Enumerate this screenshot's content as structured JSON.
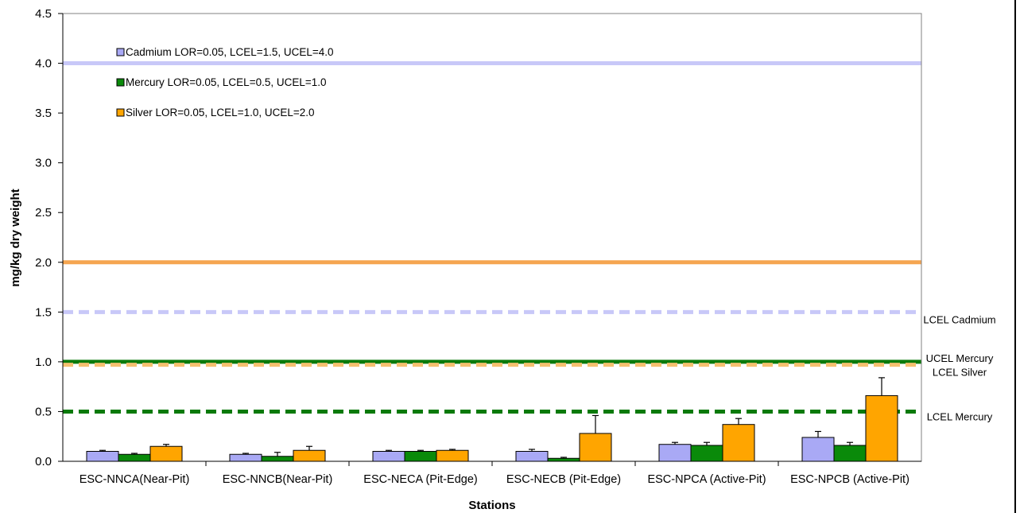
{
  "chart_data": {
    "type": "bar",
    "title": "",
    "xlabel": "Stations",
    "ylabel": "mg/kg dry weight",
    "ylim": [
      0,
      4.5
    ],
    "yticks": [
      "0.0",
      "0.5",
      "1.0",
      "1.5",
      "2.0",
      "2.5",
      "3.0",
      "3.5",
      "4.0",
      "4.5"
    ],
    "categories": [
      "ESC-NNCA(Near-Pit)",
      "ESC-NNCB(Near-Pit)",
      "ESC-NECA (Pit-Edge)",
      "ESC-NECB (Pit-Edge)",
      "ESC-NPCA (Active-Pit)",
      "ESC-NPCB (Active-Pit)"
    ],
    "series": [
      {
        "name": "Cadmium LOR=0.05, LCEL=1.5, UCEL=4.0",
        "color": "#a9a9f5",
        "values": [
          0.1,
          0.07,
          0.1,
          0.1,
          0.17,
          0.24
        ],
        "errors": [
          0.01,
          0.01,
          0.01,
          0.02,
          0.02,
          0.06
        ]
      },
      {
        "name": "Mercury LOR=0.05, LCEL=0.5, UCEL=1.0",
        "color": "#0a8a0a",
        "values": [
          0.07,
          0.05,
          0.1,
          0.03,
          0.16,
          0.16
        ],
        "errors": [
          0.01,
          0.04,
          0.01,
          0.01,
          0.03,
          0.03
        ]
      },
      {
        "name": "Silver LOR=0.05, LCEL=1.0, UCEL=2.0",
        "color": "#ffa500",
        "values": [
          0.15,
          0.11,
          0.11,
          0.28,
          0.37,
          0.66
        ],
        "errors": [
          0.02,
          0.04,
          0.01,
          0.18,
          0.06,
          0.18
        ]
      }
    ],
    "reference_lines": [
      {
        "value": 4.0,
        "color": "#c8c8f8",
        "style": "solid",
        "label": ""
      },
      {
        "value": 2.0,
        "color": "#f5a550",
        "style": "solid",
        "label": ""
      },
      {
        "value": 1.5,
        "color": "#c8c8f8",
        "style": "dashed",
        "label": "LCEL Cadmium"
      },
      {
        "value": 1.0,
        "color": "#0a7a0a",
        "style": "solid",
        "label": "UCEL Mercury"
      },
      {
        "value": 0.97,
        "color": "#f5c070",
        "style": "dashed",
        "label": "LCEL Silver"
      },
      {
        "value": 0.5,
        "color": "#0a7a0a",
        "style": "dashed",
        "label": "LCEL Mercury"
      }
    ],
    "legend_position": "top-left",
    "grid": false
  }
}
